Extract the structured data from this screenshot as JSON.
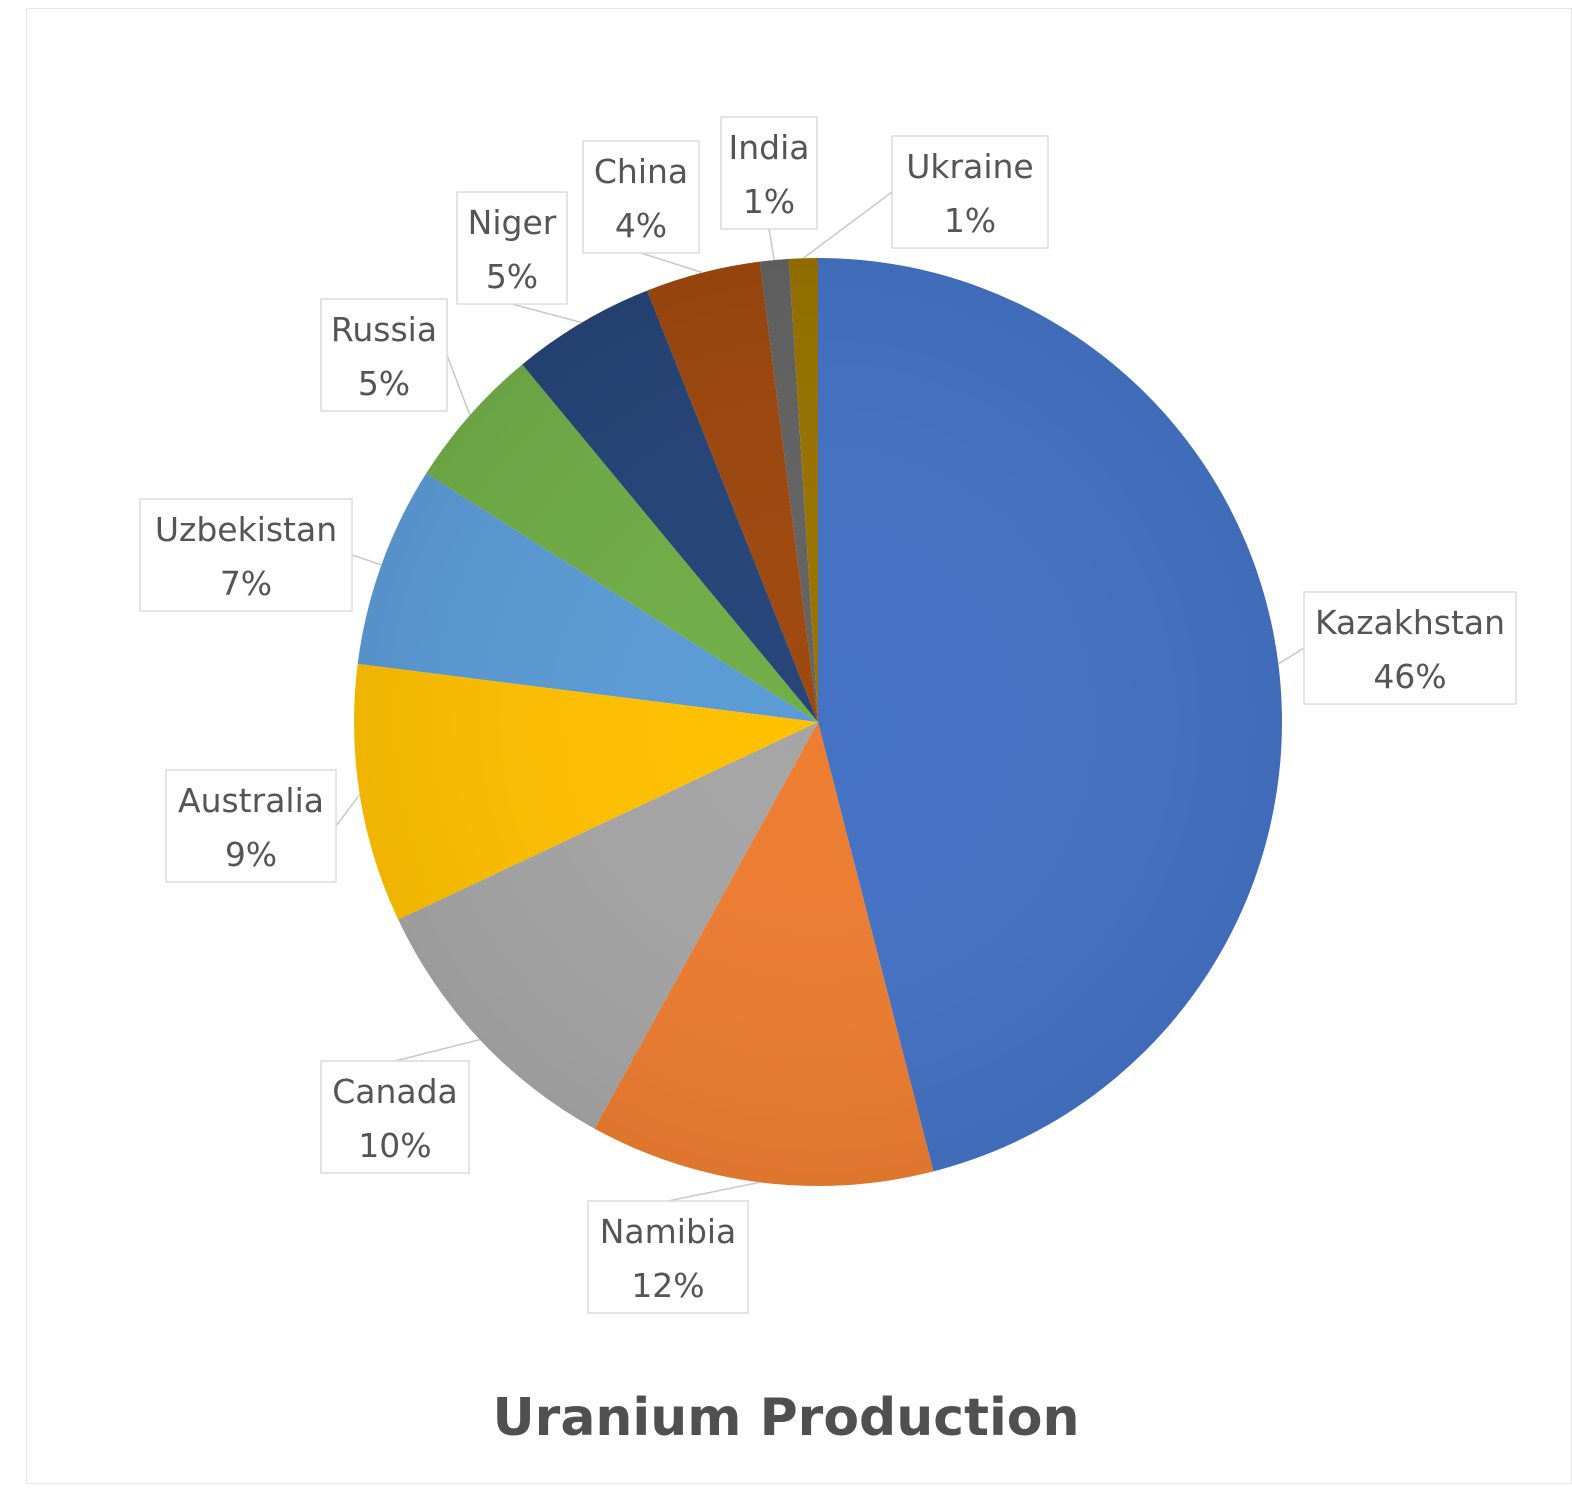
{
  "chart_data": {
    "type": "pie",
    "title": "Uranium Production",
    "categories": [
      "Kazakhstan",
      "Namibia",
      "Canada",
      "Australia",
      "Uzbekistan",
      "Russia",
      "Niger",
      "China",
      "India",
      "Ukraine"
    ],
    "values": [
      46,
      12,
      10,
      9,
      7,
      5,
      5,
      4,
      1,
      1
    ],
    "value_labels": [
      "46%",
      "12%",
      "10%",
      "9%",
      "7%",
      "5%",
      "5%",
      "4%",
      "1%",
      "1%"
    ],
    "colors": [
      "#4472C4",
      "#ED7D31",
      "#A5A5A5",
      "#FFC000",
      "#5B9BD5",
      "#70AD47",
      "#264478",
      "#9E480E",
      "#636363",
      "#997300"
    ],
    "start_angle": "12 o'clock",
    "direction": "clockwise",
    "legend": "none",
    "data_labels": "category name and percentage in callout boxes"
  }
}
